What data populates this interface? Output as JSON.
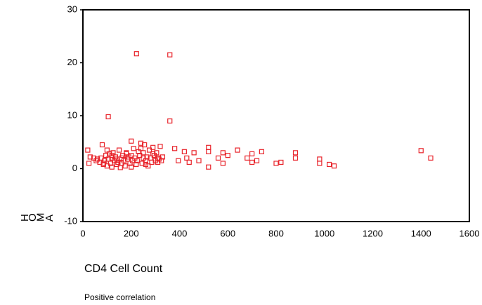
{
  "chart_data": {
    "type": "scatter",
    "x_label": "CD4 Cell Count",
    "y_label": "HOMA",
    "note": "Positive correlation",
    "x": [
      222,
      360,
      105,
      360,
      20,
      25,
      30,
      45,
      55,
      60,
      70,
      75,
      80,
      85,
      90,
      95,
      100,
      100,
      105,
      110,
      115,
      120,
      120,
      125,
      130,
      135,
      140,
      145,
      150,
      155,
      160,
      160,
      165,
      170,
      175,
      180,
      185,
      190,
      195,
      200,
      200,
      205,
      210,
      215,
      220,
      225,
      230,
      235,
      240,
      245,
      250,
      255,
      260,
      265,
      270,
      275,
      280,
      285,
      290,
      295,
      300,
      305,
      310,
      315,
      320,
      325,
      330,
      85,
      140,
      200,
      240,
      260,
      290,
      310,
      180,
      220,
      120,
      250,
      380,
      395,
      420,
      430,
      440,
      460,
      480,
      520,
      520,
      520,
      560,
      580,
      580,
      600,
      640,
      680,
      700,
      700,
      720,
      740,
      800,
      820,
      880,
      880,
      980,
      980,
      1020,
      1040,
      1400,
      1440
    ],
    "values": [
      21.7,
      21.5,
      9.8,
      9.0,
      3.5,
      1.0,
      2.2,
      2.0,
      1.5,
      1.8,
      1.2,
      2.0,
      4.5,
      0.8,
      1.5,
      2.5,
      3.5,
      0.5,
      1.8,
      2.8,
      1.0,
      2.0,
      0.3,
      3.0,
      1.5,
      2.2,
      0.8,
      1.2,
      3.5,
      0.2,
      2.0,
      1.0,
      2.5,
      1.5,
      0.5,
      3.0,
      1.8,
      2.2,
      1.0,
      5.2,
      2.5,
      1.5,
      3.8,
      2.0,
      0.8,
      1.5,
      3.2,
      2.5,
      4.8,
      1.0,
      2.0,
      4.5,
      1.5,
      2.2,
      0.5,
      3.5,
      2.0,
      1.2,
      4.0,
      2.5,
      1.5,
      3.0,
      2.0,
      1.8,
      4.2,
      1.5,
      2.2,
      1.0,
      1.8,
      0.3,
      3.8,
      0.8,
      2.8,
      1.2,
      2.8,
      0.8,
      2.5,
      3.0,
      3.8,
      1.5,
      3.2,
      2.0,
      1.2,
      3.0,
      1.5,
      4.0,
      3.2,
      0.3,
      2.0,
      3.0,
      1.0,
      2.5,
      3.5,
      2.0,
      2.8,
      1.2,
      1.5,
      3.2,
      1.0,
      1.2,
      3.0,
      2.0,
      1.8,
      1.0,
      0.8,
      0.5,
      3.4,
      2.0
    ],
    "color": "#e8232a",
    "xlim": [
      0,
      1600
    ],
    "xticks": [
      0,
      200,
      400,
      600,
      800,
      1000,
      1200,
      1400,
      1600
    ],
    "ylim": [
      -10,
      30
    ],
    "yticks": [
      -10,
      0,
      10,
      20,
      30
    ]
  }
}
